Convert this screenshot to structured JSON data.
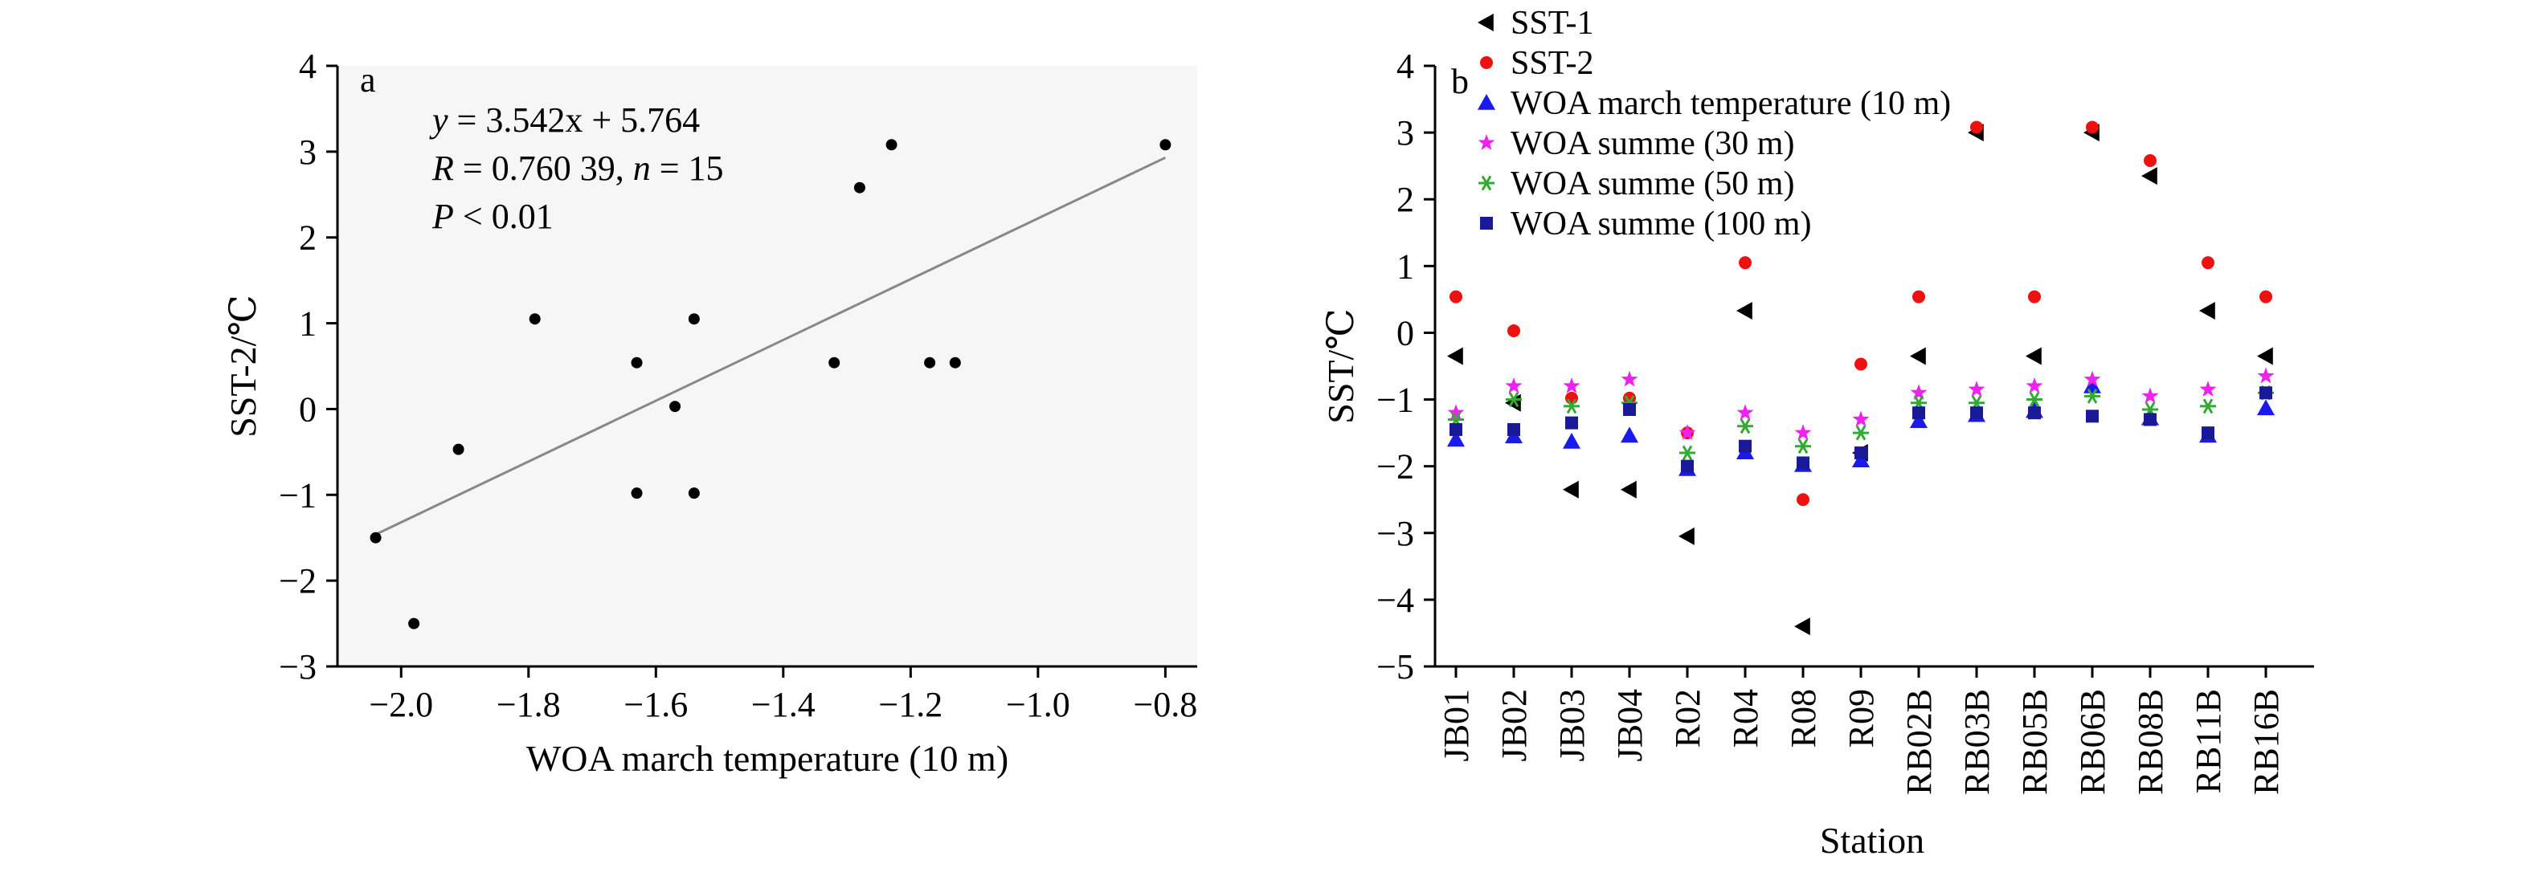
{
  "chart_data": [
    {
      "panel": "a",
      "type": "scatter",
      "xlabel": "WOA march temperature (10 m)",
      "ylabel": "SST-2/℃",
      "xlim": [
        -2.1,
        -0.75
      ],
      "ylim": [
        -3,
        4
      ],
      "xticks": [
        -2.0,
        -1.8,
        -1.6,
        -1.4,
        -1.2,
        -1.0,
        -0.8
      ],
      "xtick_labels": [
        "−2.0",
        "−1.8",
        "−1.6",
        "−1.4",
        "−1.2",
        "−1.0",
        "−0.8"
      ],
      "yticks": [
        -3,
        -2,
        -1,
        0,
        1,
        2,
        3,
        4
      ],
      "ytick_labels": [
        "−3",
        "−2",
        "−1",
        "0",
        "1",
        "2",
        "3",
        "4"
      ],
      "annotation": {
        "line1": "y = 3.542x + 5.764",
        "line2": "R = 0.760 39, n = 15",
        "line3": "P < 0.01"
      },
      "fit": {
        "slope": 3.542,
        "intercept": 5.764,
        "x_from": -2.04,
        "x_to": -0.8
      },
      "points": [
        {
          "x": -2.04,
          "y": -1.5
        },
        {
          "x": -1.98,
          "y": -2.5
        },
        {
          "x": -1.91,
          "y": -0.47
        },
        {
          "x": -1.79,
          "y": 1.05
        },
        {
          "x": -1.63,
          "y": 0.54
        },
        {
          "x": -1.63,
          "y": -0.98
        },
        {
          "x": -1.57,
          "y": 0.03
        },
        {
          "x": -1.54,
          "y": 1.05
        },
        {
          "x": -1.54,
          "y": -0.98
        },
        {
          "x": -1.32,
          "y": 0.54
        },
        {
          "x": -1.28,
          "y": 2.58
        },
        {
          "x": -1.23,
          "y": 3.08
        },
        {
          "x": -1.17,
          "y": 0.54
        },
        {
          "x": -1.13,
          "y": 0.54
        },
        {
          "x": -0.8,
          "y": 3.08
        }
      ],
      "color": "#000000"
    },
    {
      "panel": "b",
      "type": "scatter",
      "xlabel": "Station",
      "ylabel": "SST/℃",
      "ylim": [
        -5,
        4
      ],
      "yticks": [
        -5,
        -4,
        -3,
        -2,
        -1,
        0,
        1,
        2,
        3,
        4
      ],
      "ytick_labels": [
        "−5",
        "−4",
        "−3",
        "−2",
        "−1",
        "0",
        "1",
        "2",
        "3",
        "4"
      ],
      "categories": [
        "JB01",
        "JB02",
        "JB03",
        "JB04",
        "R02",
        "R04",
        "R08",
        "R09",
        "RB02B",
        "RB03B",
        "RB05B",
        "RB06B",
        "RB08B",
        "RB11B",
        "RB16B"
      ],
      "legend_position": "top",
      "series": [
        {
          "name": "SST-1",
          "marker": "triangle-left",
          "color": "#000000",
          "values": [
            -0.35,
            -1.05,
            -2.35,
            -2.35,
            -3.05,
            0.33,
            -4.4,
            -1.8,
            -0.35,
            3.0,
            -0.35,
            3.0,
            2.35,
            0.33,
            -0.35
          ]
        },
        {
          "name": "SST-2",
          "marker": "circle",
          "color": "#ee1111",
          "values": [
            0.54,
            0.03,
            -0.98,
            -0.98,
            -1.5,
            1.05,
            -2.5,
            -0.47,
            0.54,
            3.08,
            0.54,
            3.08,
            2.58,
            1.05,
            0.54
          ]
        },
        {
          "name": "WOA march temperature (10 m)",
          "marker": "triangle-up",
          "color": "#1a1aee",
          "values": [
            -1.6,
            -1.55,
            -1.63,
            -1.54,
            -2.04,
            -1.79,
            -1.98,
            -1.91,
            -1.32,
            -1.23,
            -1.17,
            -0.8,
            -1.28,
            -1.54,
            -1.13
          ]
        },
        {
          "name": "WOA summe (30 m)",
          "marker": "star",
          "color": "#ee22ee",
          "values": [
            -1.2,
            -0.8,
            -0.8,
            -0.7,
            -1.5,
            -1.2,
            -1.5,
            -1.3,
            -0.9,
            -0.85,
            -0.8,
            -0.7,
            -0.95,
            -0.85,
            -0.65
          ]
        },
        {
          "name": "WOA summe (50 m)",
          "marker": "asterisk",
          "color": "#33aa33",
          "values": [
            -1.3,
            -1.0,
            -1.1,
            -1.05,
            -1.8,
            -1.4,
            -1.7,
            -1.5,
            -1.05,
            -1.05,
            -1.0,
            -0.95,
            -1.15,
            -1.1,
            -0.9
          ]
        },
        {
          "name": "WOA summe (100 m)",
          "marker": "square",
          "color": "#1a1a99",
          "values": [
            -1.45,
            -1.45,
            -1.35,
            -1.15,
            -2.0,
            -1.7,
            -1.95,
            -1.8,
            -1.2,
            -1.2,
            -1.2,
            -1.25,
            -1.3,
            -1.5,
            -0.9
          ]
        }
      ]
    }
  ]
}
